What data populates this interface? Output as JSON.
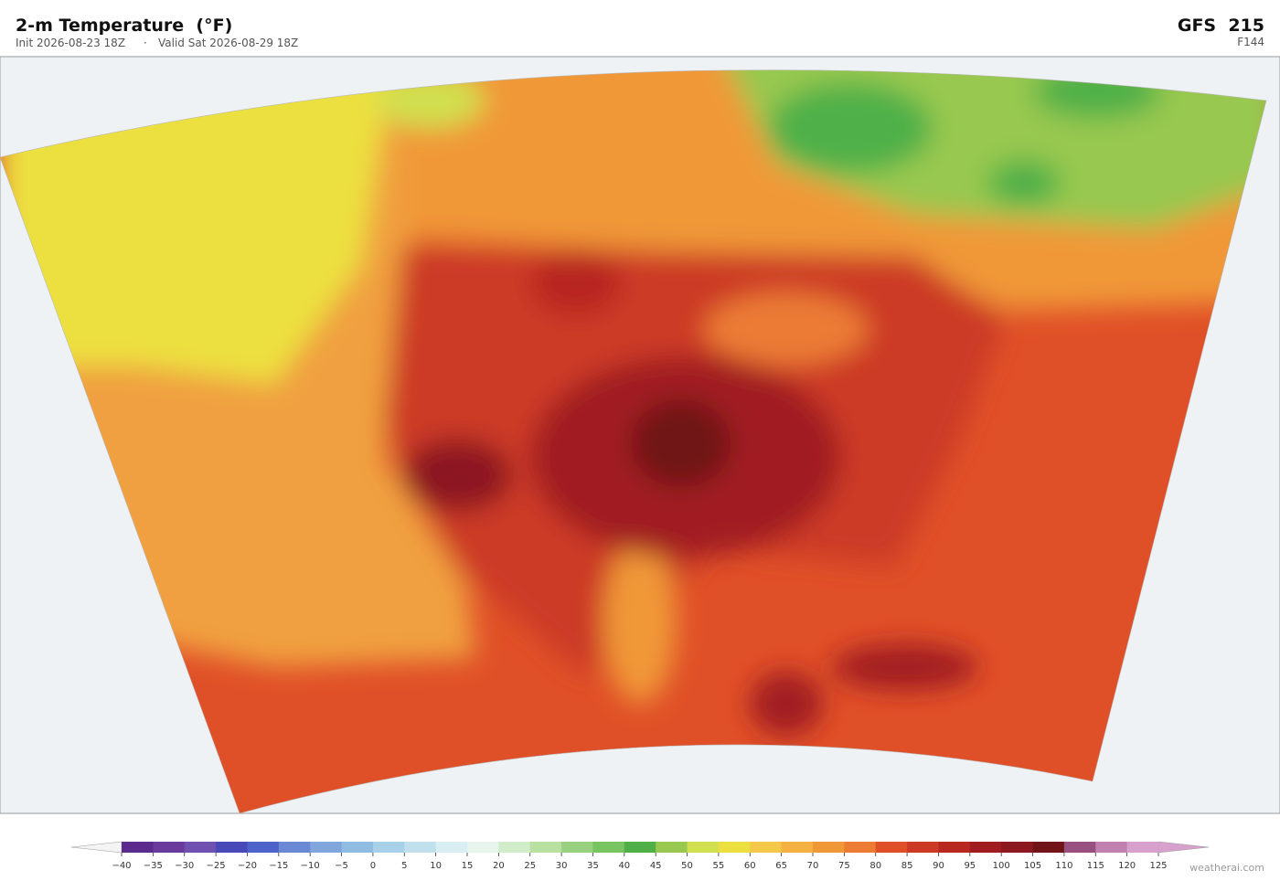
{
  "header": {
    "title": "2-m Temperature  (°F)",
    "init": "Init 2026-08-23 18Z",
    "separator": "·",
    "valid": "Valid Sat 2026-08-29 18Z",
    "model": "GFS  215",
    "forecast_hour": "F144"
  },
  "colorbar": {
    "ticks": [
      {
        "value": -40,
        "label": "−40"
      },
      {
        "value": -35,
        "label": "−35"
      },
      {
        "value": -30,
        "label": "−30"
      },
      {
        "value": -25,
        "label": "−25"
      },
      {
        "value": -20,
        "label": "−20"
      },
      {
        "value": -15,
        "label": "−15"
      },
      {
        "value": -10,
        "label": "−10"
      },
      {
        "value": -5,
        "label": "−5"
      },
      0,
      5,
      10,
      15,
      20,
      25,
      30,
      35,
      40,
      45,
      50,
      55,
      60,
      65,
      70,
      75,
      80,
      85,
      90,
      95,
      100,
      105,
      110,
      115,
      120,
      125
    ],
    "colors": [
      "#5b2a8c",
      "#6a3a9c",
      "#7050b0",
      "#4848b8",
      "#4d62c8",
      "#6a88d4",
      "#80a6dc",
      "#8fbce0",
      "#a8d0e8",
      "#c0e0ee",
      "#d8eef2",
      "#e8f5ec",
      "#d0ecc8",
      "#b8e0a0",
      "#98d080",
      "#78c460",
      "#50b048",
      "#98c850",
      "#d0e050",
      "#ece040",
      "#f4c848",
      "#f4b040",
      "#f09838",
      "#ec7c34",
      "#e05028",
      "#cc3a26",
      "#b82820",
      "#a01c20",
      "#8c1820",
      "#701418",
      "#985080",
      "#c080b0",
      "#d8a0cc"
    ],
    "under_color": "#f4f4f4",
    "over_color": "#d8a0cc"
  },
  "watermark": "weatherai.com"
}
